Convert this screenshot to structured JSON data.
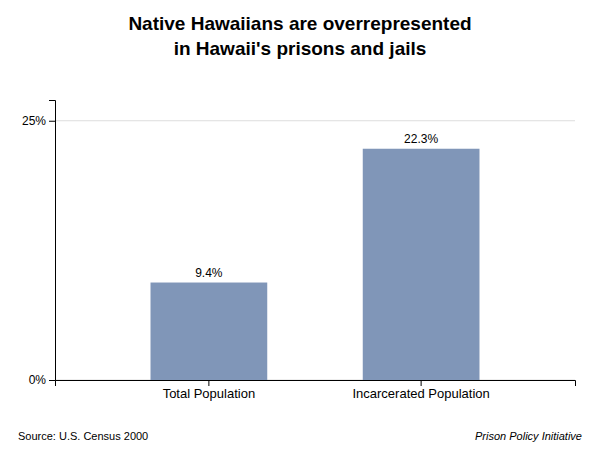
{
  "chart_data": {
    "type": "bar",
    "title": "Native Hawaiians are overrepresented\nin Hawaii's prisons and jails",
    "categories": [
      "Total Population",
      "Incarcerated Population"
    ],
    "values": [
      9.4,
      22.3
    ],
    "value_labels": [
      "9.4%",
      "22.3%"
    ],
    "data_labels": true,
    "color": "#8096b8",
    "ylim": [
      0,
      27
    ],
    "yticks": [
      {
        "value": 0,
        "label": "0%"
      },
      {
        "value": 25,
        "label": "25%"
      }
    ],
    "grid": true,
    "annotations": [
      "Source: U.S. Census 2000",
      "Prison Policy Initiative"
    ]
  }
}
